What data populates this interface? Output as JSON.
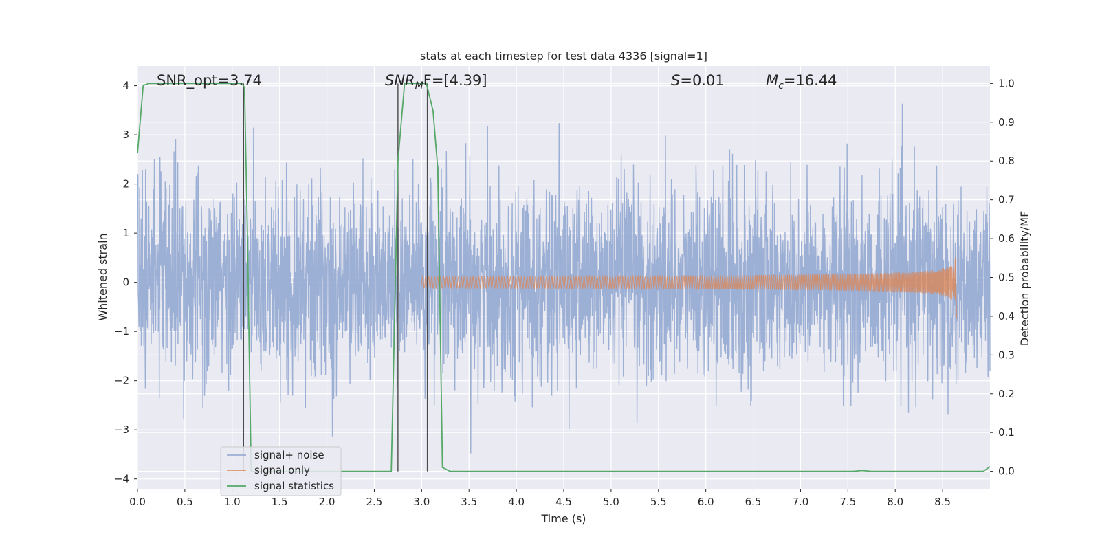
{
  "chart_data": {
    "type": "line",
    "title": "stats at each timestep for test data 4336 [signal=1]",
    "xlabel": "Time (s)",
    "ylabel": "Whitened strain",
    "ylabel_right": "Detection probability/MF",
    "xlim": [
      0.0,
      9.0
    ],
    "ylim": [
      -4.2,
      4.4
    ],
    "ylim_right": [
      -0.045,
      1.045
    ],
    "x_ticks": [
      "0.0",
      "0.5",
      "1.0",
      "1.5",
      "2.0",
      "2.5",
      "3.0",
      "3.5",
      "4.0",
      "4.5",
      "5.0",
      "5.5",
      "6.0",
      "6.5",
      "7.0",
      "7.5",
      "8.0",
      "8.5"
    ],
    "x_tick_values": [
      0.0,
      0.5,
      1.0,
      1.5,
      2.0,
      2.5,
      3.0,
      3.5,
      4.0,
      4.5,
      5.0,
      5.5,
      6.0,
      6.5,
      7.0,
      7.5,
      8.0,
      8.5
    ],
    "y_ticks": [
      "4",
      "3",
      "2",
      "1",
      "0",
      "−1",
      "−2",
      "−3",
      "−4"
    ],
    "y_tick_values": [
      4,
      3,
      2,
      1,
      0,
      -1,
      -2,
      -3,
      -4
    ],
    "y_right_ticks": [
      "1.0",
      "0.9",
      "0.8",
      "0.7",
      "0.6",
      "0.5",
      "0.4",
      "0.3",
      "0.2",
      "0.1",
      "0.0"
    ],
    "y_right_tick_values": [
      1.0,
      0.9,
      0.8,
      0.7,
      0.6,
      0.5,
      0.4,
      0.3,
      0.2,
      0.1,
      0.0
    ],
    "grid": true,
    "legend_position": "lower-left",
    "annotations": {
      "snr_opt": "SNR_opt=3.74",
      "snr_mf_main": "SNR",
      "snr_mf_sub": "M",
      "snr_mf_rest": "F=[4.39]",
      "s_main": "S",
      "s_rest": "=0.01",
      "mc_main": "M",
      "mc_sub": "c",
      "mc_rest": "=16.44"
    },
    "vertical_lines_x": [
      1.12,
      2.75,
      3.06
    ],
    "series": [
      {
        "name": "signal+ noise",
        "color": "#8ea4cf",
        "description_values": "whitened noisy strain, roughly gaussian, amplitude mostly within -2.5 to 2.5 with spikes to about 4 and -3.7",
        "noise_sigma": 0.95,
        "x_range": [
          0.0,
          9.0
        ]
      },
      {
        "name": "signal only",
        "color": "#dd8452",
        "chirp_start": 3.0,
        "chirp_end": 8.65,
        "peak_amplitude": 0.8
      },
      {
        "name": "signal statistics",
        "color": "#55a868",
        "axis": "right",
        "x": [
          0.0,
          0.06,
          0.12,
          1.1,
          1.13,
          1.16,
          1.2,
          1.3,
          2.68,
          2.75,
          2.82,
          3.05,
          3.12,
          3.17,
          3.22,
          3.3,
          7.55,
          7.65,
          7.75,
          8.93,
          9.0
        ],
        "y": [
          0.82,
          0.995,
          1.0,
          1.0,
          0.99,
          0.62,
          0.0,
          0.0,
          0.0,
          0.8,
          1.0,
          1.0,
          0.93,
          0.78,
          0.01,
          0.0,
          0.0,
          0.002,
          0.0,
          0.0,
          0.012
        ]
      }
    ]
  }
}
